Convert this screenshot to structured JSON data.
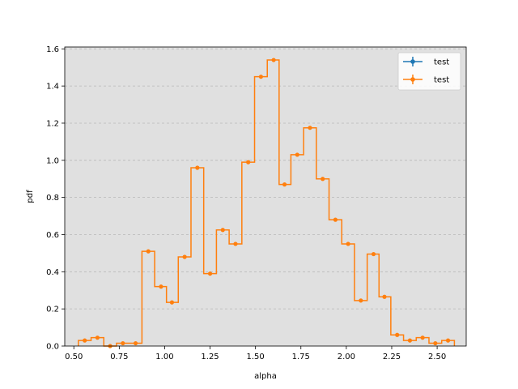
{
  "chart_data": {
    "type": "line",
    "xlabel": "alpha",
    "ylabel": "pdf",
    "xlim": [
      0.45,
      2.66
    ],
    "ylim": [
      0,
      1.61
    ],
    "xticks": [
      0.5,
      0.75,
      1.0,
      1.25,
      1.5,
      1.75,
      2.0,
      2.25,
      2.5
    ],
    "xtick_labels": [
      "0.50",
      "0.75",
      "1.00",
      "1.25",
      "1.50",
      "1.75",
      "2.00",
      "2.25",
      "2.50"
    ],
    "yticks": [
      0.0,
      0.2,
      0.4,
      0.6,
      0.8,
      1.0,
      1.2,
      1.4,
      1.6
    ],
    "ytick_labels": [
      "0.0",
      "0.2",
      "0.4",
      "0.6",
      "0.8",
      "1.0",
      "1.2",
      "1.4",
      "1.6"
    ],
    "grid": "horizontal-dashed",
    "legend_position": "top-right",
    "series": [
      {
        "name": "test",
        "color": "#1f77b4",
        "style": "step-with-markers",
        "visible_in_plot": false,
        "x": [],
        "y": []
      },
      {
        "name": "test",
        "color": "#ff7f0e",
        "style": "step-with-markers",
        "visible_in_plot": true,
        "x": [
          0.56,
          0.63,
          0.7,
          0.77,
          0.84,
          0.91,
          0.98,
          1.04,
          1.11,
          1.18,
          1.25,
          1.32,
          1.39,
          1.46,
          1.53,
          1.6,
          1.66,
          1.73,
          1.8,
          1.87,
          1.94,
          2.01,
          2.08,
          2.15,
          2.21,
          2.28,
          2.35,
          2.42,
          2.49,
          2.56
        ],
        "y": [
          0.03,
          0.045,
          0.0,
          0.015,
          0.015,
          0.51,
          0.32,
          0.235,
          0.48,
          0.96,
          0.39,
          0.625,
          0.55,
          0.99,
          1.45,
          1.54,
          0.87,
          1.03,
          1.175,
          0.9,
          0.68,
          0.55,
          0.245,
          0.495,
          0.265,
          0.06,
          0.03,
          0.045,
          0.015,
          0.03
        ]
      }
    ]
  }
}
